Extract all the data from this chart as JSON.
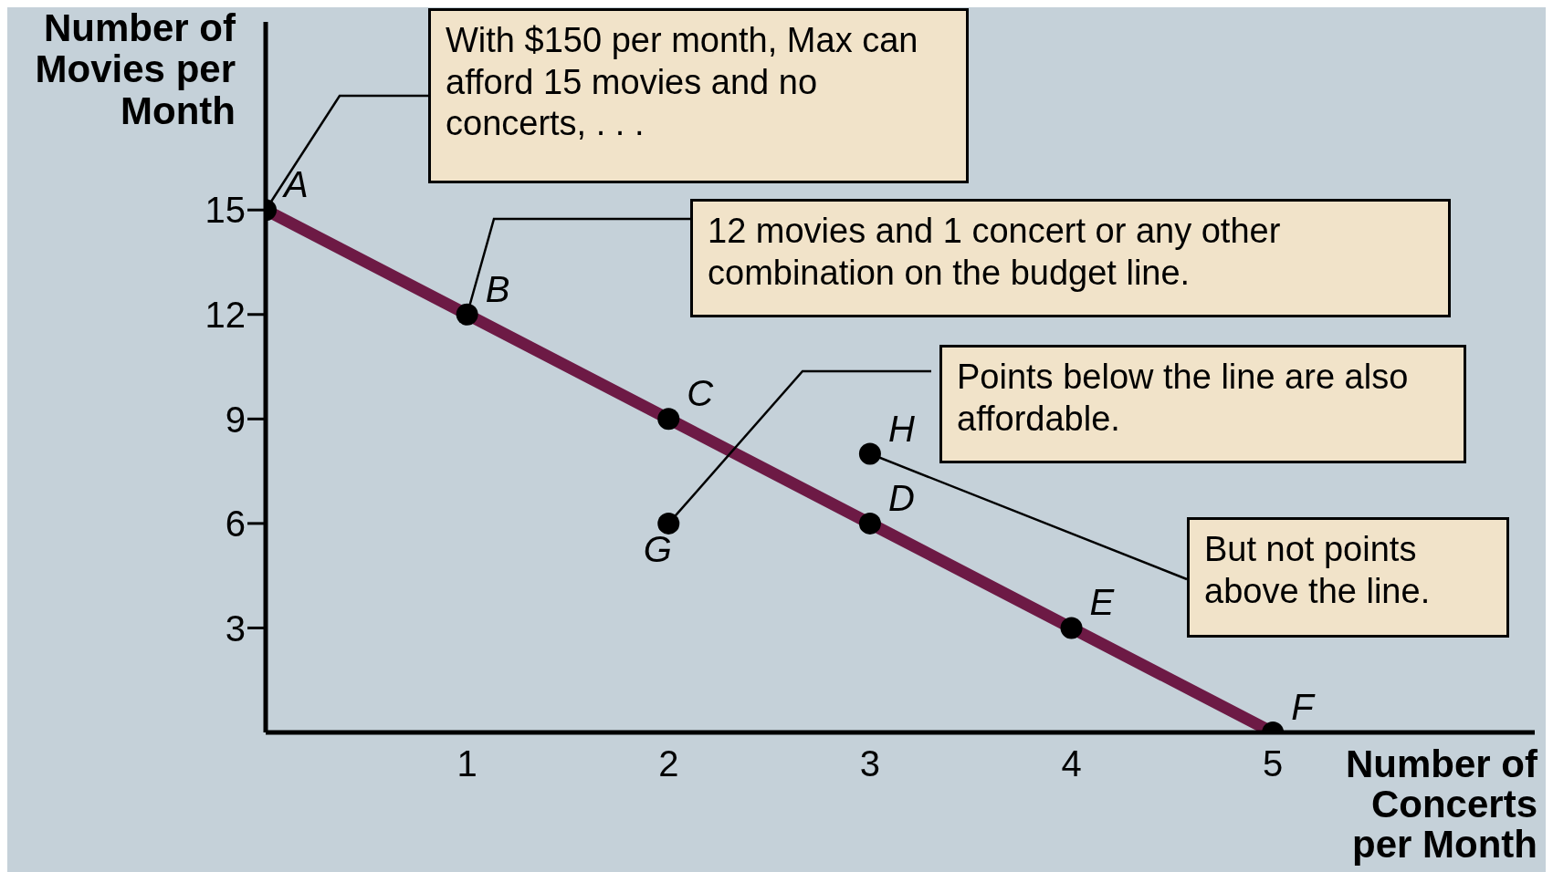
{
  "chart_data": {
    "type": "line",
    "xlabel": "Number of Concerts per Month",
    "ylabel": "Number of Movies per Month",
    "xlim": [
      0,
      6.3
    ],
    "xticks": [
      1,
      2,
      3,
      4,
      5
    ],
    "ylim": [
      0,
      20.4
    ],
    "yticks": [
      3,
      6,
      9,
      12,
      15
    ],
    "grid": false,
    "series": [
      {
        "color": "#6d1a45",
        "x": [
          0,
          1,
          2,
          3,
          4,
          5
        ],
        "values": [
          15,
          12,
          9,
          6,
          3,
          0
        ]
      },
      {
        "type": "scatter",
        "color": "#000000",
        "marker": "circle",
        "x": [
          0,
          1,
          2,
          3,
          4,
          5,
          2,
          3
        ],
        "values": [
          15,
          12,
          9,
          6,
          3,
          0,
          6,
          8
        ],
        "value_labels": [
          "A",
          "B",
          "C",
          "D",
          "E",
          "F",
          "G",
          "H"
        ]
      }
    ],
    "annotations": [
      {
        "text": "With $150 per month, Max can afford 15 movies and no concerts, . . .",
        "x": 0,
        "y": 15
      },
      {
        "text": "12 movies and 1 concert or any other combination on the budget line.",
        "x": 1,
        "y": 12
      },
      {
        "text": "Points below the line are also affordable.",
        "x": 2,
        "y": 6
      },
      {
        "text": "But not points above the line.",
        "x": 3,
        "y": 8
      }
    ]
  }
}
